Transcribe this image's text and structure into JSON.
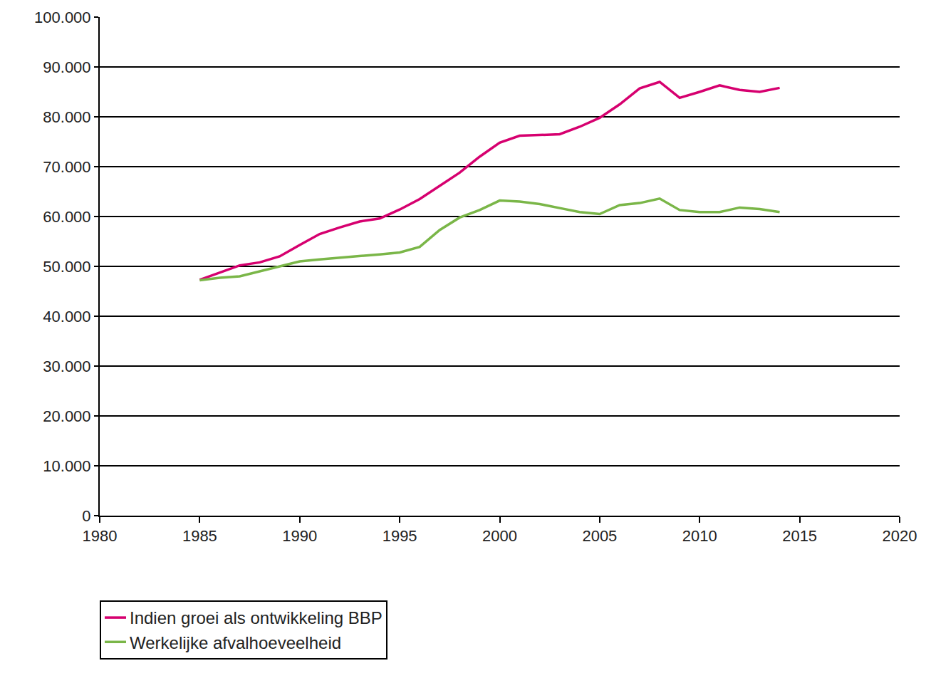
{
  "chart_data": {
    "type": "line",
    "x": [
      1985,
      1986,
      1987,
      1988,
      1989,
      1990,
      1991,
      1992,
      1993,
      1994,
      1995,
      1996,
      1997,
      1998,
      1999,
      2000,
      2001,
      2002,
      2003,
      2004,
      2005,
      2006,
      2007,
      2008,
      2009,
      2010,
      2011,
      2012,
      2013,
      2014
    ],
    "series": [
      {
        "name": "Indien groei als ontwikkeling BBP",
        "color": "#d6006f",
        "values": [
          47300,
          48800,
          50200,
          50800,
          52000,
          54300,
          56500,
          57800,
          59000,
          59600,
          61400,
          63500,
          66200,
          68800,
          72000,
          74800,
          76200,
          76300,
          76500,
          78000,
          79800,
          82500,
          85700,
          87000,
          83800,
          85000,
          86300,
          85400,
          85000,
          85800
        ]
      },
      {
        "name": "Werkelijke afvalhoeveelheid",
        "color": "#7ab648",
        "values": [
          47200,
          47700,
          48000,
          49000,
          50000,
          51000,
          51400,
          51700,
          52000,
          52400,
          52800,
          53900,
          57300,
          59800,
          61300,
          63200,
          63000,
          62500,
          61700,
          60900,
          60500,
          62300,
          62700,
          63600,
          61300,
          60900,
          60900,
          61800,
          61500,
          60900
        ]
      }
    ],
    "xlim": [
      1980,
      2020
    ],
    "xticks": [
      1980,
      1985,
      1990,
      1995,
      2000,
      2005,
      2010,
      2015,
      2020
    ],
    "ylim": [
      0,
      100000
    ],
    "yticks": [
      0,
      {
        "value": 10000,
        "label": "10.000"
      },
      {
        "value": 20000,
        "label": "20.000"
      },
      {
        "value": 30000,
        "label": "30.000"
      },
      {
        "value": 40000,
        "label": "40.000"
      },
      {
        "value": 50000,
        "label": "50.000"
      },
      {
        "value": 60000,
        "label": "60.000"
      },
      {
        "value": 70000,
        "label": "70.000"
      },
      {
        "value": 80000,
        "label": "80.000"
      },
      {
        "value": 90000,
        "label": "90.000"
      },
      {
        "value": 100000,
        "label": "100.000"
      }
    ],
    "grid": true,
    "legend": "bottom"
  }
}
